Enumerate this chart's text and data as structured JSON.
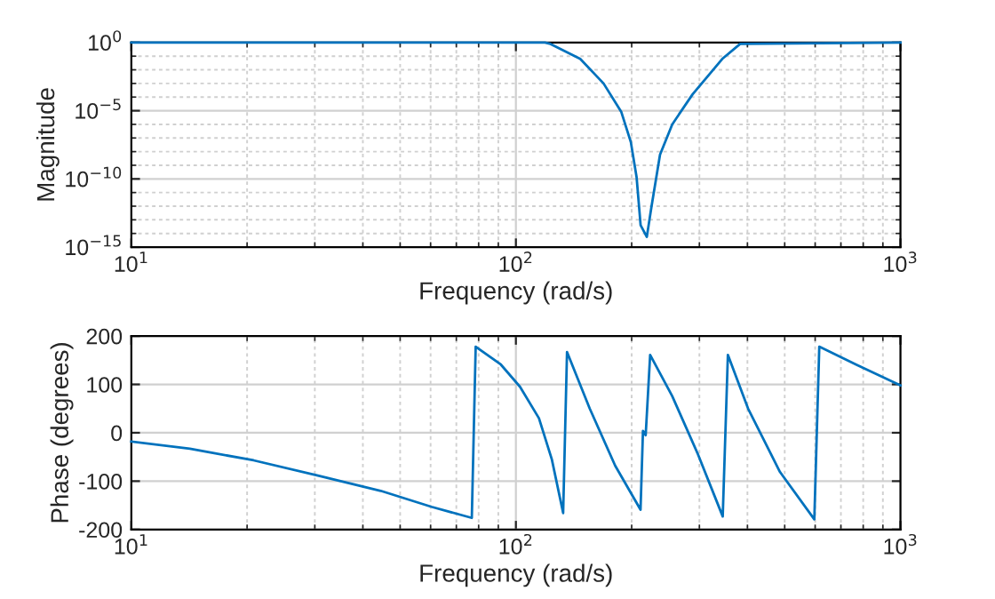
{
  "chart_data": [
    {
      "type": "line",
      "xlabel": "Frequency (rad/s)",
      "ylabel": "Magnitude",
      "log": "xy",
      "grid": true,
      "xlim": [
        10,
        1000
      ],
      "xticks": [
        {
          "value": 10,
          "label": "10$^{1}$"
        },
        {
          "value": 100,
          "label": "10$^{2}$"
        },
        {
          "value": 1000,
          "label": "10$^{3}$"
        }
      ],
      "ylim": [
        1e-15,
        1
      ],
      "yticks": [
        {
          "value": 1e-15,
          "label": "10$^{−15}$"
        },
        {
          "value": 1e-10,
          "label": "10$^{−10}$"
        },
        {
          "value": 1e-05,
          "label": "10$^{−5}$"
        },
        {
          "value": 1,
          "label": "10$^{0}$"
        }
      ],
      "series": [
        {
          "color": "#0072bd",
          "x": [
            10,
            119,
            123,
            147,
            169,
            188,
            199,
            206,
            211,
            219,
            225,
            237,
            255,
            288,
            344,
            383,
            1000
          ],
          "values": [
            1,
            1,
            0.79,
            0.063,
            0.001,
            8e-06,
            5e-08,
            1.3e-10,
            4e-14,
            5.6e-15,
            8e-13,
            6e-09,
            1e-06,
            0.00016,
            0.063,
            0.79,
            1
          ]
        }
      ]
    },
    {
      "type": "line",
      "xlabel": "Frequency (rad/s)",
      "ylabel": "Phase (degrees)",
      "log": "x",
      "grid": true,
      "xlim": [
        10,
        1000
      ],
      "xticks": [
        {
          "value": 10,
          "label": "10$^{1}$"
        },
        {
          "value": 100,
          "label": "10$^{2}$"
        },
        {
          "value": 1000,
          "label": "10$^{3}$"
        }
      ],
      "ylim": [
        -200,
        200
      ],
      "yticks": [
        -200,
        -100,
        0,
        100,
        200
      ],
      "series": [
        {
          "color": "#0072bd",
          "x": [
            10,
            14.2,
            20.8,
            30.4,
            44.5,
            60.3,
            76.8,
            78.6,
            91.4,
            102.5,
            114.8,
            124,
            132.7,
            135.8,
            155.6,
            181.2,
            210.9,
            214,
            217.5,
            223.4,
            254.9,
            296.5,
            345,
            355.8,
            401.6,
            486,
            597,
            615,
            767,
            1000
          ],
          "values": [
            -18,
            -33,
            -57,
            -88,
            -120,
            -153,
            -176,
            178,
            141,
            95,
            30,
            -55,
            -166,
            167,
            50,
            -68,
            -159,
            4,
            -5,
            161,
            76,
            -42,
            -173,
            161,
            50,
            -81,
            -179,
            178,
            141,
            98
          ]
        }
      ]
    }
  ]
}
